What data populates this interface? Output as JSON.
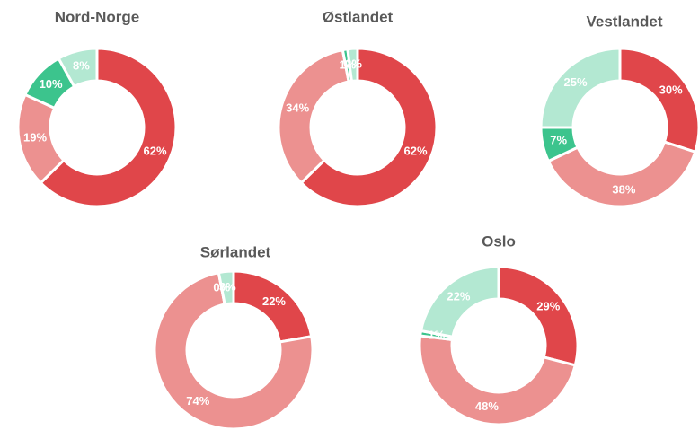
{
  "chart_data": [
    {
      "type": "pie",
      "title": "Nord-Norge",
      "values": [
        62,
        19,
        10,
        8
      ],
      "value_labels": [
        "62%",
        "19%",
        "10%",
        "8%"
      ],
      "colors": [
        "#e0464a",
        "#ec9190",
        "#3cc48d",
        "#b3e8d2"
      ]
    },
    {
      "type": "pie",
      "title": "Østlandet",
      "values": [
        62,
        34,
        1,
        2
      ],
      "value_labels": [
        "62%",
        "34%",
        "1%",
        "2%"
      ],
      "colors": [
        "#e0464a",
        "#ec9190",
        "#3cc48d",
        "#b3e8d2"
      ]
    },
    {
      "type": "pie",
      "title": "Vestlandet",
      "values": [
        30,
        38,
        7,
        25
      ],
      "value_labels": [
        "30%",
        "38%",
        "7%",
        "25%"
      ],
      "colors": [
        "#e0464a",
        "#ec9190",
        "#3cc48d",
        "#b3e8d2"
      ]
    },
    {
      "type": "pie",
      "title": "Sørlandet",
      "values": [
        22,
        74,
        0,
        3
      ],
      "value_labels": [
        "22%",
        "74%",
        "0%",
        "3%"
      ],
      "colors": [
        "#e0464a",
        "#ec9190",
        "#3cc48d",
        "#b3e8d2"
      ]
    },
    {
      "type": "pie",
      "title": "Oslo",
      "values": [
        29,
        48,
        1,
        22
      ],
      "value_labels": [
        "29%",
        "48%",
        "1%",
        "22%"
      ],
      "colors": [
        "#e0464a",
        "#ec9190",
        "#3cc48d",
        "#b3e8d2"
      ]
    }
  ]
}
